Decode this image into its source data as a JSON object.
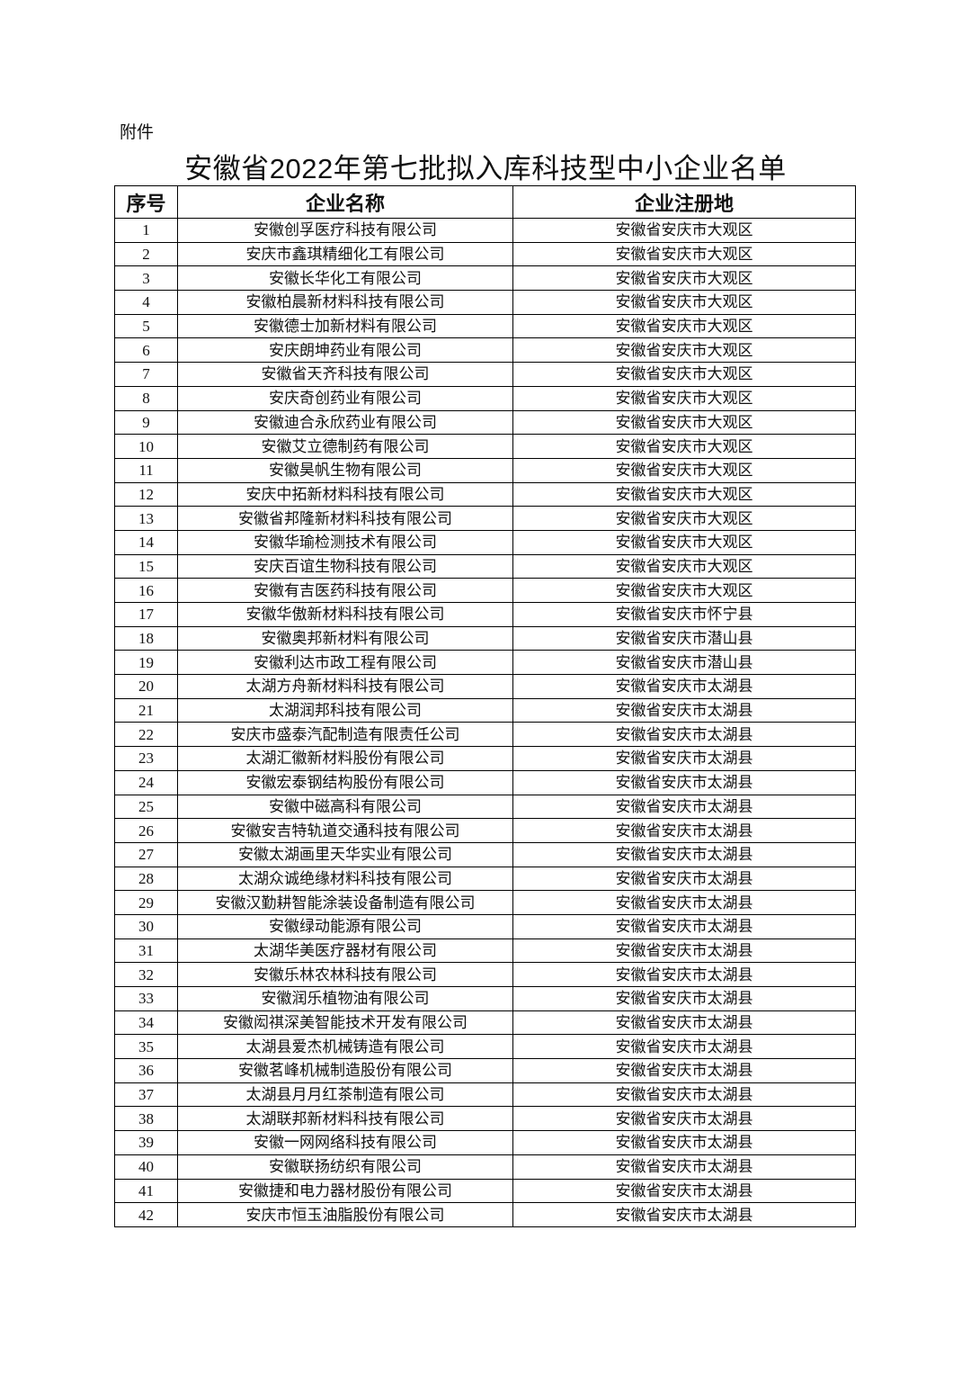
{
  "attachment_label": "附件",
  "title": "安徽省2022年第七批拟入库科技型中小企业名单",
  "table": {
    "headers": [
      "序号",
      "企业名称",
      "企业注册地"
    ],
    "rows": [
      [
        "1",
        "安徽创孚医疗科技有限公司",
        "安徽省安庆市大观区"
      ],
      [
        "2",
        "安庆市鑫琪精细化工有限公司",
        "安徽省安庆市大观区"
      ],
      [
        "3",
        "安徽长华化工有限公司",
        "安徽省安庆市大观区"
      ],
      [
        "4",
        "安徽柏晨新材料科技有限公司",
        "安徽省安庆市大观区"
      ],
      [
        "5",
        "安徽德士加新材料有限公司",
        "安徽省安庆市大观区"
      ],
      [
        "6",
        "安庆朗坤药业有限公司",
        "安徽省安庆市大观区"
      ],
      [
        "7",
        "安徽省天齐科技有限公司",
        "安徽省安庆市大观区"
      ],
      [
        "8",
        "安庆奇创药业有限公司",
        "安徽省安庆市大观区"
      ],
      [
        "9",
        "安徽迪合永欣药业有限公司",
        "安徽省安庆市大观区"
      ],
      [
        "10",
        "安徽艾立德制药有限公司",
        "安徽省安庆市大观区"
      ],
      [
        "11",
        "安徽昊帆生物有限公司",
        "安徽省安庆市大观区"
      ],
      [
        "12",
        "安庆中拓新材料科技有限公司",
        "安徽省安庆市大观区"
      ],
      [
        "13",
        "安徽省邦隆新材料科技有限公司",
        "安徽省安庆市大观区"
      ],
      [
        "14",
        "安徽华瑜检测技术有限公司",
        "安徽省安庆市大观区"
      ],
      [
        "15",
        "安庆百谊生物科技有限公司",
        "安徽省安庆市大观区"
      ],
      [
        "16",
        "安徽有吉医药科技有限公司",
        "安徽省安庆市大观区"
      ],
      [
        "17",
        "安徽华傲新材料科技有限公司",
        "安徽省安庆市怀宁县"
      ],
      [
        "18",
        "安徽奥邦新材料有限公司",
        "安徽省安庆市潜山县"
      ],
      [
        "19",
        "安徽利达市政工程有限公司",
        "安徽省安庆市潜山县"
      ],
      [
        "20",
        "太湖方舟新材料科技有限公司",
        "安徽省安庆市太湖县"
      ],
      [
        "21",
        "太湖润邦科技有限公司",
        "安徽省安庆市太湖县"
      ],
      [
        "22",
        "安庆市盛泰汽配制造有限责任公司",
        "安徽省安庆市太湖县"
      ],
      [
        "23",
        "太湖汇徽新材料股份有限公司",
        "安徽省安庆市太湖县"
      ],
      [
        "24",
        "安徽宏泰钢结构股份有限公司",
        "安徽省安庆市太湖县"
      ],
      [
        "25",
        "安徽中磁高科有限公司",
        "安徽省安庆市太湖县"
      ],
      [
        "26",
        "安徽安吉特轨道交通科技有限公司",
        "安徽省安庆市太湖县"
      ],
      [
        "27",
        "安徽太湖画里天华实业有限公司",
        "安徽省安庆市太湖县"
      ],
      [
        "28",
        "太湖众诚绝缘材料科技有限公司",
        "安徽省安庆市太湖县"
      ],
      [
        "29",
        "安徽汉勤耕智能涂装设备制造有限公司",
        "安徽省安庆市太湖县"
      ],
      [
        "30",
        "安徽绿动能源有限公司",
        "安徽省安庆市太湖县"
      ],
      [
        "31",
        "太湖华美医疗器材有限公司",
        "安徽省安庆市太湖县"
      ],
      [
        "32",
        "安徽乐林农林科技有限公司",
        "安徽省安庆市太湖县"
      ],
      [
        "33",
        "安徽润乐植物油有限公司",
        "安徽省安庆市太湖县"
      ],
      [
        "34",
        "安徽闳祺深美智能技术开发有限公司",
        "安徽省安庆市太湖县"
      ],
      [
        "35",
        "太湖县爱杰机械铸造有限公司",
        "安徽省安庆市太湖县"
      ],
      [
        "36",
        "安徽茗峰机械制造股份有限公司",
        "安徽省安庆市太湖县"
      ],
      [
        "37",
        "太湖县月月红茶制造有限公司",
        "安徽省安庆市太湖县"
      ],
      [
        "38",
        "太湖联邦新材料科技有限公司",
        "安徽省安庆市太湖县"
      ],
      [
        "39",
        "安徽一网网络科技有限公司",
        "安徽省安庆市太湖县"
      ],
      [
        "40",
        "安徽联扬纺织有限公司",
        "安徽省安庆市太湖县"
      ],
      [
        "41",
        "安徽捷和电力器材股份有限公司",
        "安徽省安庆市太湖县"
      ],
      [
        "42",
        "安庆市恒玉油脂股份有限公司",
        "安徽省安庆市太湖县"
      ]
    ]
  }
}
